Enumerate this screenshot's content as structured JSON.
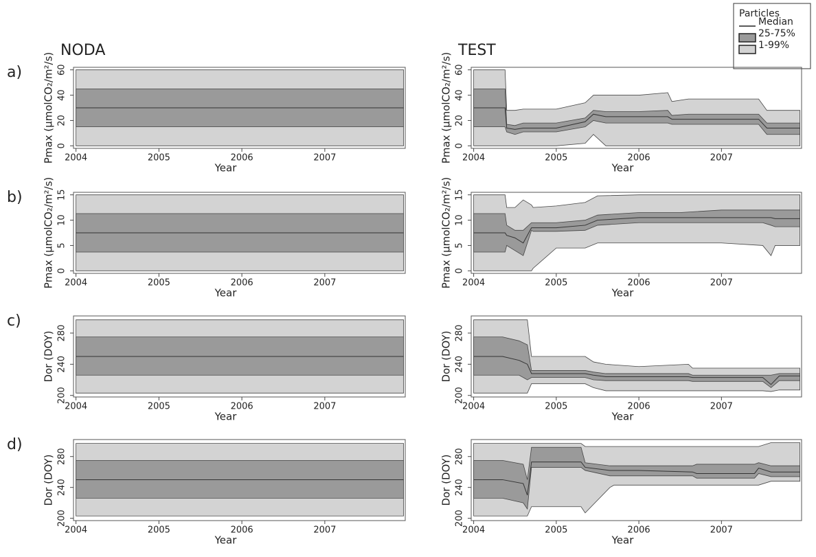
{
  "legend": {
    "title": "Particles",
    "items": [
      "Median",
      "25-75%",
      "1-99%"
    ]
  },
  "colors": {
    "outer": "#d3d3d3",
    "inner": "#9a9a9a",
    "line": "#333333",
    "frame": "#555555"
  },
  "chart_data": [
    {
      "type": "band",
      "title": "NODA",
      "panel": "a)",
      "xlabel": "Year",
      "ylabel": "Pmax (µmolCO₂/m²/s)",
      "xlim": [
        2003.97,
        2007.97
      ],
      "xticks": [
        2004,
        2005,
        2006,
        2007
      ],
      "ylim": [
        -2,
        62
      ],
      "yticks": [
        0,
        20,
        40,
        60
      ],
      "x": [
        2004,
        2007.95
      ],
      "q01": [
        0,
        0
      ],
      "q25": [
        15,
        15
      ],
      "median": [
        30,
        30
      ],
      "q75": [
        45,
        45
      ],
      "q99": [
        60,
        60
      ]
    },
    {
      "type": "band",
      "title": "TEST",
      "xlabel": "Year",
      "ylabel": "Pmax (µmolCO₂/m²/s)",
      "xlim": [
        2003.97,
        2007.97
      ],
      "xticks": [
        2004,
        2005,
        2006,
        2007
      ],
      "ylim": [
        -2,
        62
      ],
      "yticks": [
        0,
        20,
        40,
        60
      ],
      "x": [
        2004,
        2004.38,
        2004.4,
        2004.5,
        2004.6,
        2005,
        2005.35,
        2005.45,
        2005.6,
        2006,
        2006.35,
        2006.4,
        2006.6,
        2007,
        2007.45,
        2007.55,
        2007.95
      ],
      "q99": [
        60,
        60,
        28,
        28,
        29,
        29,
        34,
        40,
        40,
        40,
        42,
        35,
        37,
        37,
        37,
        28,
        28
      ],
      "q75": [
        45,
        45,
        17,
        16,
        18,
        18,
        22,
        28,
        27,
        27,
        28,
        24,
        25,
        25,
        25,
        18,
        18
      ],
      "median": [
        30,
        30,
        14,
        13,
        14,
        14,
        19,
        25,
        23,
        23,
        23,
        21,
        21,
        21,
        21,
        14,
        14
      ],
      "q25": [
        15,
        15,
        11,
        9,
        11,
        11,
        15,
        20,
        18,
        18,
        18,
        17,
        17,
        17,
        17,
        9,
        9
      ],
      "q01": [
        0,
        0,
        0,
        0,
        0,
        0,
        2,
        9,
        0,
        0,
        0,
        0,
        0,
        0,
        0,
        0,
        0
      ]
    },
    {
      "type": "band",
      "panel": "b)",
      "xlabel": "Year",
      "ylabel": "Pmax (µmolCO₂/m²/s)",
      "xlim": [
        2003.97,
        2007.97
      ],
      "xticks": [
        2004,
        2005,
        2006,
        2007
      ],
      "ylim": [
        -0.5,
        15.5
      ],
      "yticks": [
        0,
        5,
        10,
        15
      ],
      "x": [
        2004,
        2007.95
      ],
      "q01": [
        0,
        0
      ],
      "q25": [
        3.7,
        3.7
      ],
      "median": [
        7.5,
        7.5
      ],
      "q75": [
        11.3,
        11.3
      ],
      "q99": [
        15,
        15
      ]
    },
    {
      "type": "band",
      "xlabel": "Year",
      "ylabel": "Pmax (µmolCO₂/m²/s)",
      "xlim": [
        2003.97,
        2007.97
      ],
      "xticks": [
        2004,
        2005,
        2006,
        2007
      ],
      "ylim": [
        -0.5,
        15.5
      ],
      "yticks": [
        0,
        5,
        10,
        15
      ],
      "x": [
        2004,
        2004.38,
        2004.4,
        2004.5,
        2004.6,
        2004.7,
        2004.72,
        2005,
        2005.35,
        2005.5,
        2006,
        2006.5,
        2007,
        2007.5,
        2007.6,
        2007.65,
        2007.95
      ],
      "q99": [
        15,
        15,
        12.5,
        12.5,
        14,
        13,
        12.5,
        12.8,
        13.5,
        14.8,
        15,
        15,
        15,
        15,
        15,
        15,
        15
      ],
      "q75": [
        11.3,
        11.3,
        9,
        8,
        8,
        9.5,
        9.5,
        9.5,
        10,
        11,
        11.5,
        11.5,
        12,
        12,
        12,
        12,
        12
      ],
      "median": [
        7.5,
        7.5,
        7,
        6.5,
        5.5,
        8.5,
        8.5,
        8.5,
        9,
        10,
        10.5,
        10.5,
        10.5,
        10.5,
        10.5,
        10.3,
        10.3
      ],
      "q25": [
        3.7,
        3.7,
        5,
        4,
        3,
        8,
        7.8,
        7.8,
        8,
        9,
        9.5,
        9.5,
        9.5,
        9.5,
        9,
        8.7,
        8.7
      ],
      "q01": [
        0,
        0,
        0,
        0,
        0,
        0,
        0.5,
        4.5,
        4.5,
        5.5,
        5.5,
        5.5,
        5.5,
        5,
        3,
        5,
        5
      ]
    },
    {
      "type": "band",
      "panel": "c)",
      "xlabel": "Year",
      "ylabel": "Dor (DOY)",
      "xlim": [
        2003.97,
        2007.97
      ],
      "xticks": [
        2004,
        2005,
        2006,
        2007
      ],
      "ylim": [
        198,
        302
      ],
      "yticks": [
        200,
        240,
        280
      ],
      "x": [
        2004,
        2007.95
      ],
      "q01": [
        203,
        203
      ],
      "q25": [
        226,
        226
      ],
      "median": [
        250,
        250
      ],
      "q75": [
        275,
        275
      ],
      "q99": [
        297,
        297
      ]
    },
    {
      "type": "band",
      "xlabel": "Year",
      "ylabel": "Dor (DOY)",
      "xlim": [
        2003.97,
        2007.97
      ],
      "xticks": [
        2004,
        2005,
        2006,
        2007
      ],
      "ylim": [
        198,
        302
      ],
      "yticks": [
        200,
        240,
        280
      ],
      "x": [
        2004,
        2004.35,
        2004.55,
        2004.65,
        2004.7,
        2005,
        2005.35,
        2005.45,
        2005.6,
        2006,
        2006.6,
        2006.65,
        2007,
        2007.5,
        2007.6,
        2007.7,
        2007.95
      ],
      "q99": [
        297,
        297,
        297,
        297,
        250,
        250,
        250,
        243,
        240,
        237,
        240,
        235,
        235,
        235,
        235,
        235,
        235
      ],
      "q75": [
        275,
        275,
        270,
        265,
        232,
        232,
        232,
        230,
        228,
        228,
        228,
        226,
        226,
        226,
        226,
        228,
        228
      ],
      "median": [
        250,
        250,
        245,
        240,
        228,
        228,
        228,
        226,
        224,
        224,
        224,
        223,
        223,
        223,
        214,
        225,
        225
      ],
      "q25": [
        226,
        226,
        226,
        220,
        223,
        223,
        223,
        220,
        219,
        219,
        219,
        218,
        218,
        218,
        210,
        219,
        219
      ],
      "q01": [
        203,
        203,
        203,
        203,
        215,
        215,
        215,
        210,
        206,
        206,
        206,
        206,
        206,
        206,
        205,
        207,
        207
      ]
    },
    {
      "type": "band",
      "panel": "d)",
      "xlabel": "Year",
      "ylabel": "Dor (DOY)",
      "xlim": [
        2003.97,
        2007.97
      ],
      "xticks": [
        2004,
        2005,
        2006,
        2007
      ],
      "ylim": [
        197,
        302
      ],
      "yticks": [
        200,
        240,
        280
      ],
      "x": [
        2004,
        2007.95
      ],
      "q01": [
        203,
        203
      ],
      "q25": [
        226,
        226
      ],
      "median": [
        250,
        250
      ],
      "q75": [
        275,
        275
      ],
      "q99": [
        297,
        297
      ]
    },
    {
      "type": "band",
      "xlabel": "Year",
      "ylabel": "Dor (DOY)",
      "xlim": [
        2003.97,
        2007.97
      ],
      "xticks": [
        2004,
        2005,
        2006,
        2007
      ],
      "ylim": [
        197,
        302
      ],
      "yticks": [
        200,
        240,
        280
      ],
      "x": [
        2004,
        2004.35,
        2004.6,
        2004.65,
        2004.7,
        2005,
        2005.3,
        2005.35,
        2005.65,
        2005.7,
        2006,
        2006.65,
        2006.7,
        2007.4,
        2007.45,
        2007.6,
        2007.95
      ],
      "q99": [
        297,
        297,
        297,
        297,
        297,
        297,
        297,
        293,
        293,
        293,
        293,
        293,
        293,
        293,
        293,
        298,
        298
      ],
      "q75": [
        275,
        275,
        270,
        250,
        292,
        292,
        292,
        272,
        268,
        268,
        268,
        268,
        270,
        270,
        272,
        268,
        268
      ],
      "median": [
        250,
        250,
        245,
        230,
        273,
        273,
        273,
        266,
        262,
        262,
        262,
        260,
        258,
        258,
        265,
        260,
        260
      ],
      "q25": [
        226,
        226,
        220,
        212,
        266,
        266,
        266,
        262,
        255,
        255,
        255,
        255,
        252,
        252,
        258,
        254,
        254
      ],
      "q01": [
        203,
        203,
        203,
        203,
        215,
        215,
        215,
        207,
        240,
        243,
        243,
        243,
        243,
        243,
        243,
        248,
        248
      ]
    }
  ]
}
